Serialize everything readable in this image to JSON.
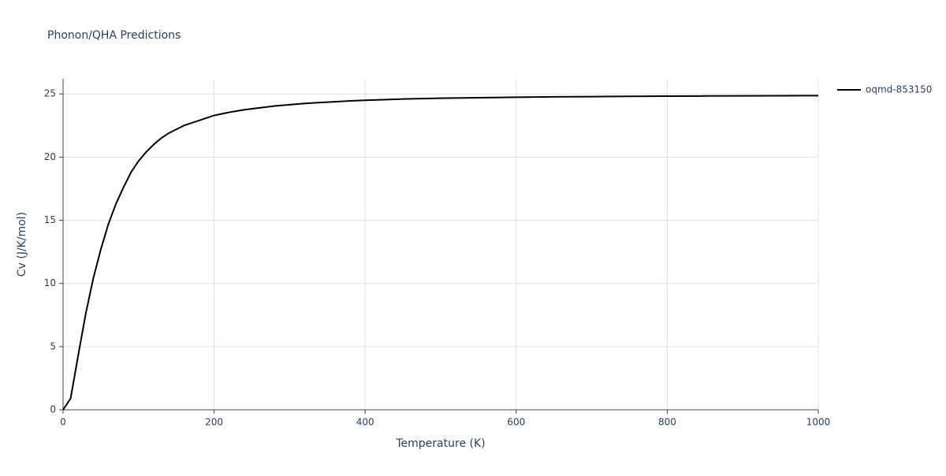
{
  "chart_data": {
    "type": "line",
    "title": "Phonon/QHA Predictions",
    "x_label": "Temperature (K)",
    "y_label": "Cv (J/K/mol)",
    "x": [
      0,
      10,
      20,
      30,
      40,
      50,
      60,
      70,
      80,
      90,
      100,
      110,
      120,
      130,
      140,
      150,
      160,
      170,
      180,
      190,
      200,
      220,
      240,
      260,
      280,
      300,
      320,
      340,
      360,
      380,
      400,
      450,
      500,
      550,
      600,
      650,
      700,
      750,
      800,
      850,
      900,
      950,
      1000
    ],
    "series": [
      {
        "name": "oqmd-853150",
        "color": "#000000",
        "values": [
          0,
          0.9,
          4.3,
          7.6,
          10.4,
          12.7,
          14.7,
          16.3,
          17.6,
          18.8,
          19.7,
          20.4,
          21.0,
          21.5,
          21.9,
          22.2,
          22.5,
          22.7,
          22.9,
          23.1,
          23.3,
          23.55,
          23.75,
          23.9,
          24.05,
          24.15,
          24.25,
          24.32,
          24.38,
          24.45,
          24.5,
          24.6,
          24.66,
          24.7,
          24.74,
          24.77,
          24.79,
          24.81,
          24.83,
          24.84,
          24.85,
          24.86,
          24.87
        ]
      }
    ],
    "xlim": [
      0,
      1000
    ],
    "ylim": [
      0,
      26.2
    ],
    "xticks": [
      0,
      200,
      400,
      600,
      800,
      1000
    ],
    "yticks": [
      0,
      5,
      10,
      15,
      20,
      25
    ],
    "grid": true,
    "legend": "right"
  }
}
